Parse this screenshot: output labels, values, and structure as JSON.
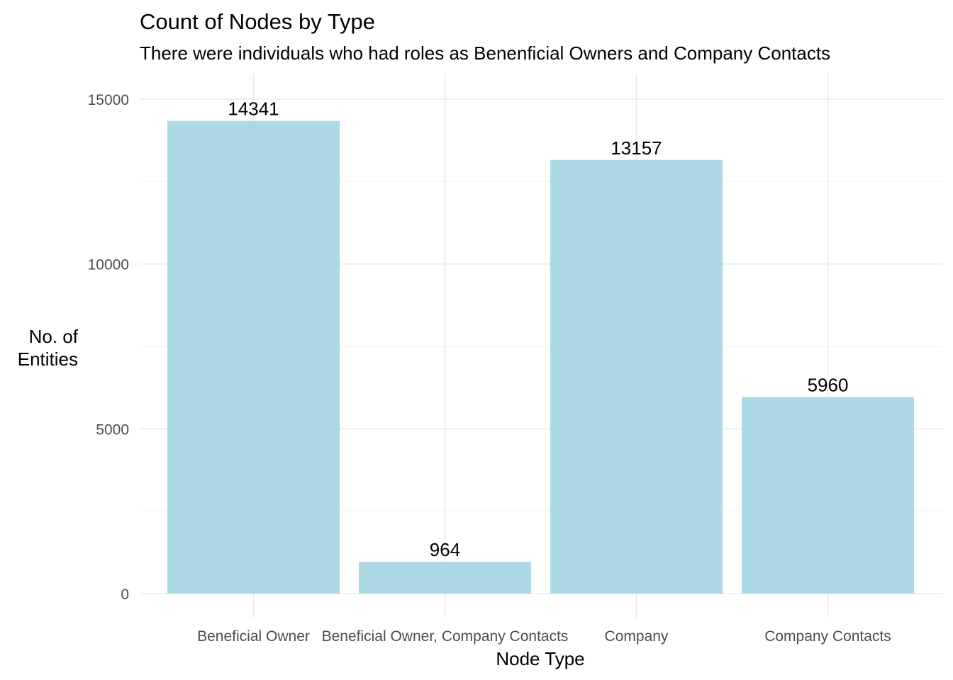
{
  "chart_data": {
    "type": "bar",
    "title": "Count of Nodes by Type",
    "subtitle": "There were individuals who had roles as Benenficial Owners and Company Contacts",
    "xlabel": "Node Type",
    "ylabel_lines": [
      "No. of",
      "Entities"
    ],
    "categories": [
      "Beneficial Owner",
      "Beneficial Owner, Company Contacts",
      "Company",
      "Company Contacts"
    ],
    "values": [
      14341,
      964,
      13157,
      5960
    ],
    "data_labels": [
      "14341",
      "964",
      "13157",
      "5960"
    ],
    "ylim": [
      0,
      15000
    ],
    "y_ticks": [
      0,
      5000,
      10000,
      15000
    ],
    "y_tick_labels": [
      "0",
      "5000",
      "10000",
      "15000"
    ],
    "grid": true,
    "legend": "none",
    "bar_color": "#add8e6"
  }
}
